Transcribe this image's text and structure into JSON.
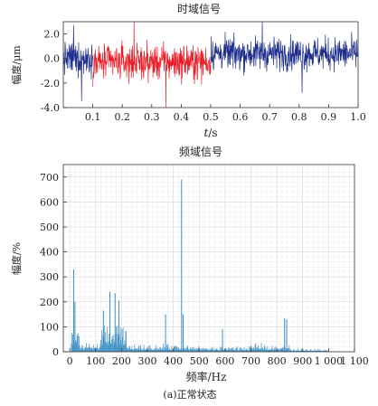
{
  "chart_data": [
    {
      "type": "line",
      "title": "时域信号",
      "xlabel_italic": "t",
      "xlabel_unit": "/s",
      "ylabel": "幅度/μm",
      "xlim": [
        0,
        1.0
      ],
      "ylim": [
        -4.0,
        3.0
      ],
      "xticks": [
        0.1,
        0.2,
        0.3,
        0.4,
        0.5,
        0.6,
        0.7,
        0.8,
        0.9,
        1.0
      ],
      "xtick_labels": [
        "0.1",
        "0.2",
        "0.3",
        "0.4",
        "0.5",
        "0.6",
        "0.7",
        "0.8",
        "0.9",
        "1.0"
      ],
      "yticks": [
        2.0,
        0.0,
        -2.0,
        -4.0
      ],
      "ytick_labels": [
        "2.0",
        "0.0",
        "-2.0",
        "-4.0"
      ],
      "grid": false,
      "series": [
        {
          "color": "#1f2f8c",
          "x_range": [
            0.0,
            0.1
          ],
          "mean": 0.0,
          "amplitude": 1.2,
          "extremes": [
            2.7,
            -3.5
          ]
        },
        {
          "color": "#e8202a",
          "x_range": [
            0.1,
            0.5
          ],
          "mean": -0.3,
          "amplitude": 1.3,
          "extremes": [
            3.0,
            -4.0
          ]
        },
        {
          "color": "#1f2f8c",
          "x_range": [
            0.5,
            1.0
          ],
          "mean": 0.4,
          "amplitude": 1.2,
          "extremes": [
            3.0,
            -2.8
          ]
        }
      ]
    },
    {
      "type": "bar",
      "title": "频域信号",
      "xlabel": "频率/Hz",
      "ylabel": "幅度/%",
      "xlim": [
        -25,
        1100
      ],
      "ylim": [
        0,
        750
      ],
      "xticks": [
        0,
        100,
        200,
        300,
        400,
        500,
        600,
        700,
        800,
        900,
        1000,
        1100
      ],
      "xtick_labels": [
        "0",
        "100",
        "200",
        "300",
        "400",
        "500",
        "600",
        "700",
        "800",
        "900",
        "1 000",
        "1 100"
      ],
      "yticks": [
        0,
        100,
        200,
        300,
        400,
        500,
        600,
        700
      ],
      "ytick_labels": [
        "0",
        "100",
        "200",
        "300",
        "400",
        "500",
        "600",
        "700"
      ],
      "grid": true,
      "color": "#3b8fc4",
      "peaks": [
        {
          "x": 15,
          "y": 330
        },
        {
          "x": 20,
          "y": 200
        },
        {
          "x": 130,
          "y": 165
        },
        {
          "x": 155,
          "y": 240
        },
        {
          "x": 175,
          "y": 235
        },
        {
          "x": 190,
          "y": 205
        },
        {
          "x": 370,
          "y": 150
        },
        {
          "x": 432,
          "y": 690
        },
        {
          "x": 438,
          "y": 150
        },
        {
          "x": 590,
          "y": 90
        },
        {
          "x": 830,
          "y": 135
        },
        {
          "x": 838,
          "y": 130
        }
      ]
    }
  ],
  "caption": "(a)正常状态"
}
